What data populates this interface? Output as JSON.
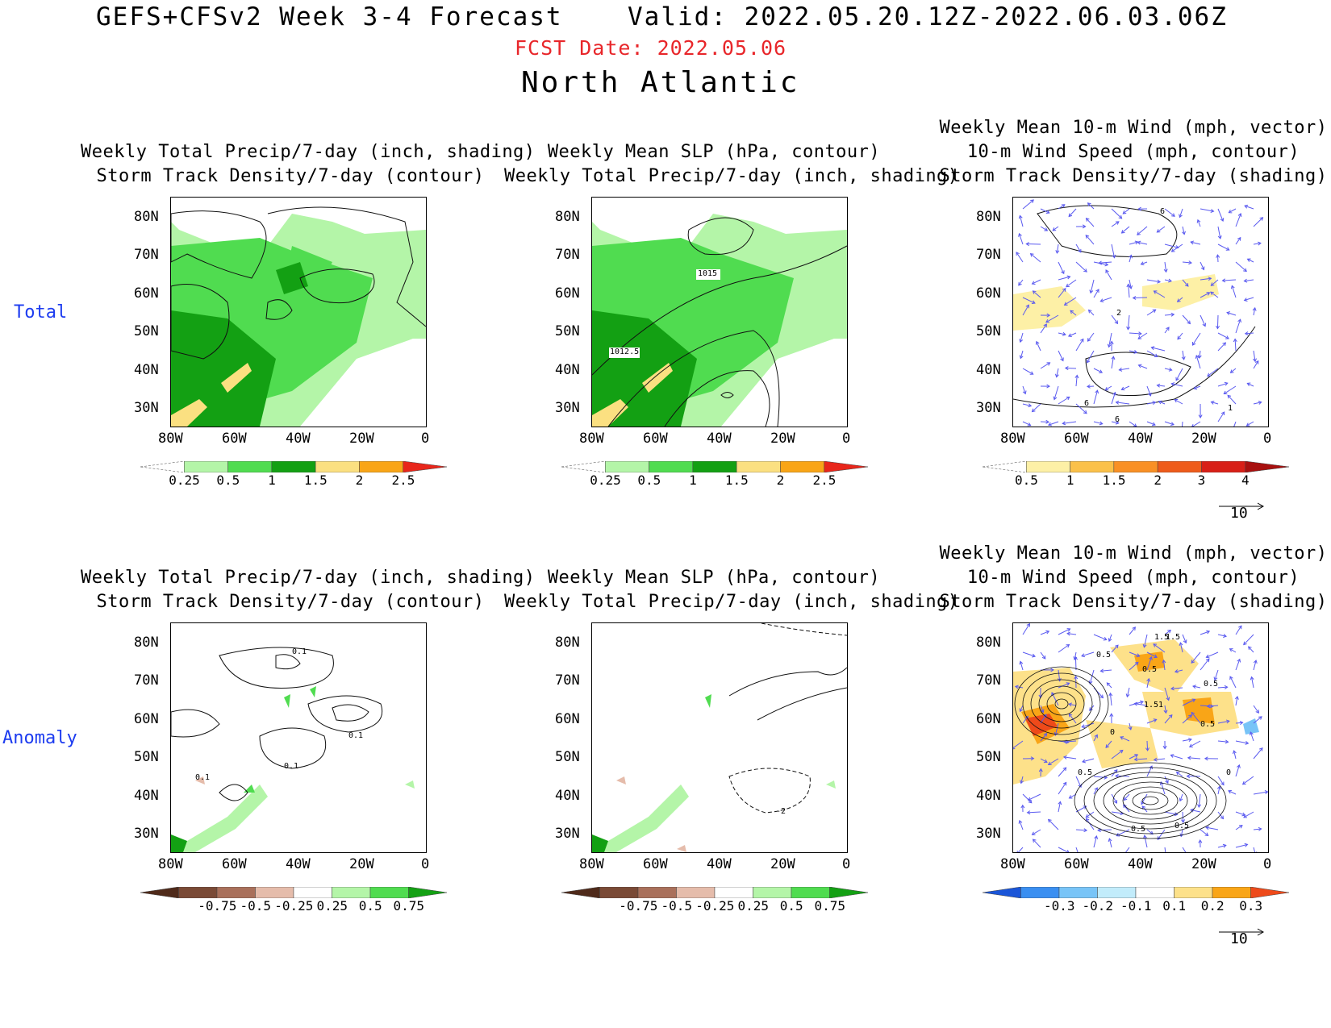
{
  "header": {
    "title": "GEFS+CFSv2 Week 3-4 Forecast",
    "valid": "Valid: 2022.05.20.12Z-2022.06.03.06Z",
    "fcst_date": "FCST Date: 2022.05.06",
    "region": "North Atlantic"
  },
  "row_labels": {
    "total": "Total",
    "anomaly": "Anomaly"
  },
  "panels": {
    "p1": {
      "title1": "Weekly Total Precip/7-day (inch, shading)",
      "title2": "Storm Track Density/7-day (contour)"
    },
    "p2": {
      "title1": "Weekly Mean SLP (hPa, contour)",
      "title2": "Weekly Total Precip/7-day (inch, shading)",
      "labels": [
        "1015",
        "1012.5"
      ]
    },
    "p3": {
      "title0": "Weekly Mean 10-m Wind (mph, vector)",
      "title1": "10-m Wind Speed (mph, contour)",
      "title2": "Storm Track Density/7-day (shading)",
      "labels": [
        "6",
        "2",
        "6",
        "6",
        "1"
      ]
    },
    "p4": {
      "title1": "Weekly Total Precip/7-day (inch, shading)",
      "title2": "Storm Track Density/7-day (contour)",
      "labels": [
        "0.1",
        "0.1",
        "0.1",
        "0.1"
      ]
    },
    "p5": {
      "title1": "Weekly Mean SLP (hPa, contour)",
      "title2": "Weekly Total Precip/7-day (inch, shading)",
      "labels": [
        "-2"
      ]
    },
    "p6": {
      "title0": "Weekly Mean 10-m Wind (mph, vector)",
      "title1": "10-m Wind Speed (mph, contour)",
      "title2": "Storm Track Density/7-day (shading)",
      "labels": [
        "1.5",
        "1.5",
        "0.5",
        "0.5",
        "1.51",
        "0.5",
        "0",
        "0.5",
        "0.5",
        "0",
        "0.5",
        "0.5"
      ]
    }
  },
  "axes": {
    "lat": [
      "80N",
      "70N",
      "60N",
      "50N",
      "40N",
      "30N"
    ],
    "lon": [
      "80W",
      "60W",
      "40W",
      "20W",
      "0"
    ]
  },
  "colorbars": {
    "precip_total": {
      "labels": [
        "0.25",
        "0.5",
        "1",
        "1.5",
        "2",
        "2.5"
      ],
      "colors": [
        "#ffffff",
        "#b4f5a8",
        "#50dc50",
        "#13a013",
        "#fbe081",
        "#f9a517",
        "#e8261b"
      ]
    },
    "density_total": {
      "labels": [
        "0.5",
        "1",
        "1.5",
        "2",
        "3",
        "4"
      ],
      "colors": [
        "#ffffff",
        "#fdf0a6",
        "#fbc14a",
        "#f99025",
        "#ee5b1a",
        "#d81f17",
        "#a8100f"
      ]
    },
    "precip_anom": {
      "labels": [
        "-0.75",
        "-0.5",
        "-0.25",
        "0.25",
        "0.5",
        "0.75"
      ],
      "colors": [
        "#4f2a1a",
        "#7a4a36",
        "#a9705b",
        "#e5bcab",
        "#ffffff",
        "#b4f5a8",
        "#50dc50",
        "#13a013"
      ]
    },
    "density_anom": {
      "labels": [
        "-0.3",
        "-0.2",
        "-0.1",
        "0.1",
        "0.2",
        "0.3"
      ],
      "colors": [
        "#1a55d8",
        "#3a8ff1",
        "#78c4f7",
        "#c2ecfb",
        "#ffffff",
        "#fde18a",
        "#f9a517",
        "#ee4a1a"
      ]
    }
  },
  "vector_ref": "10",
  "colors": {
    "vector": "#5a5af0",
    "fcst": "#e8262a",
    "row_label": "#1d3cf0"
  }
}
